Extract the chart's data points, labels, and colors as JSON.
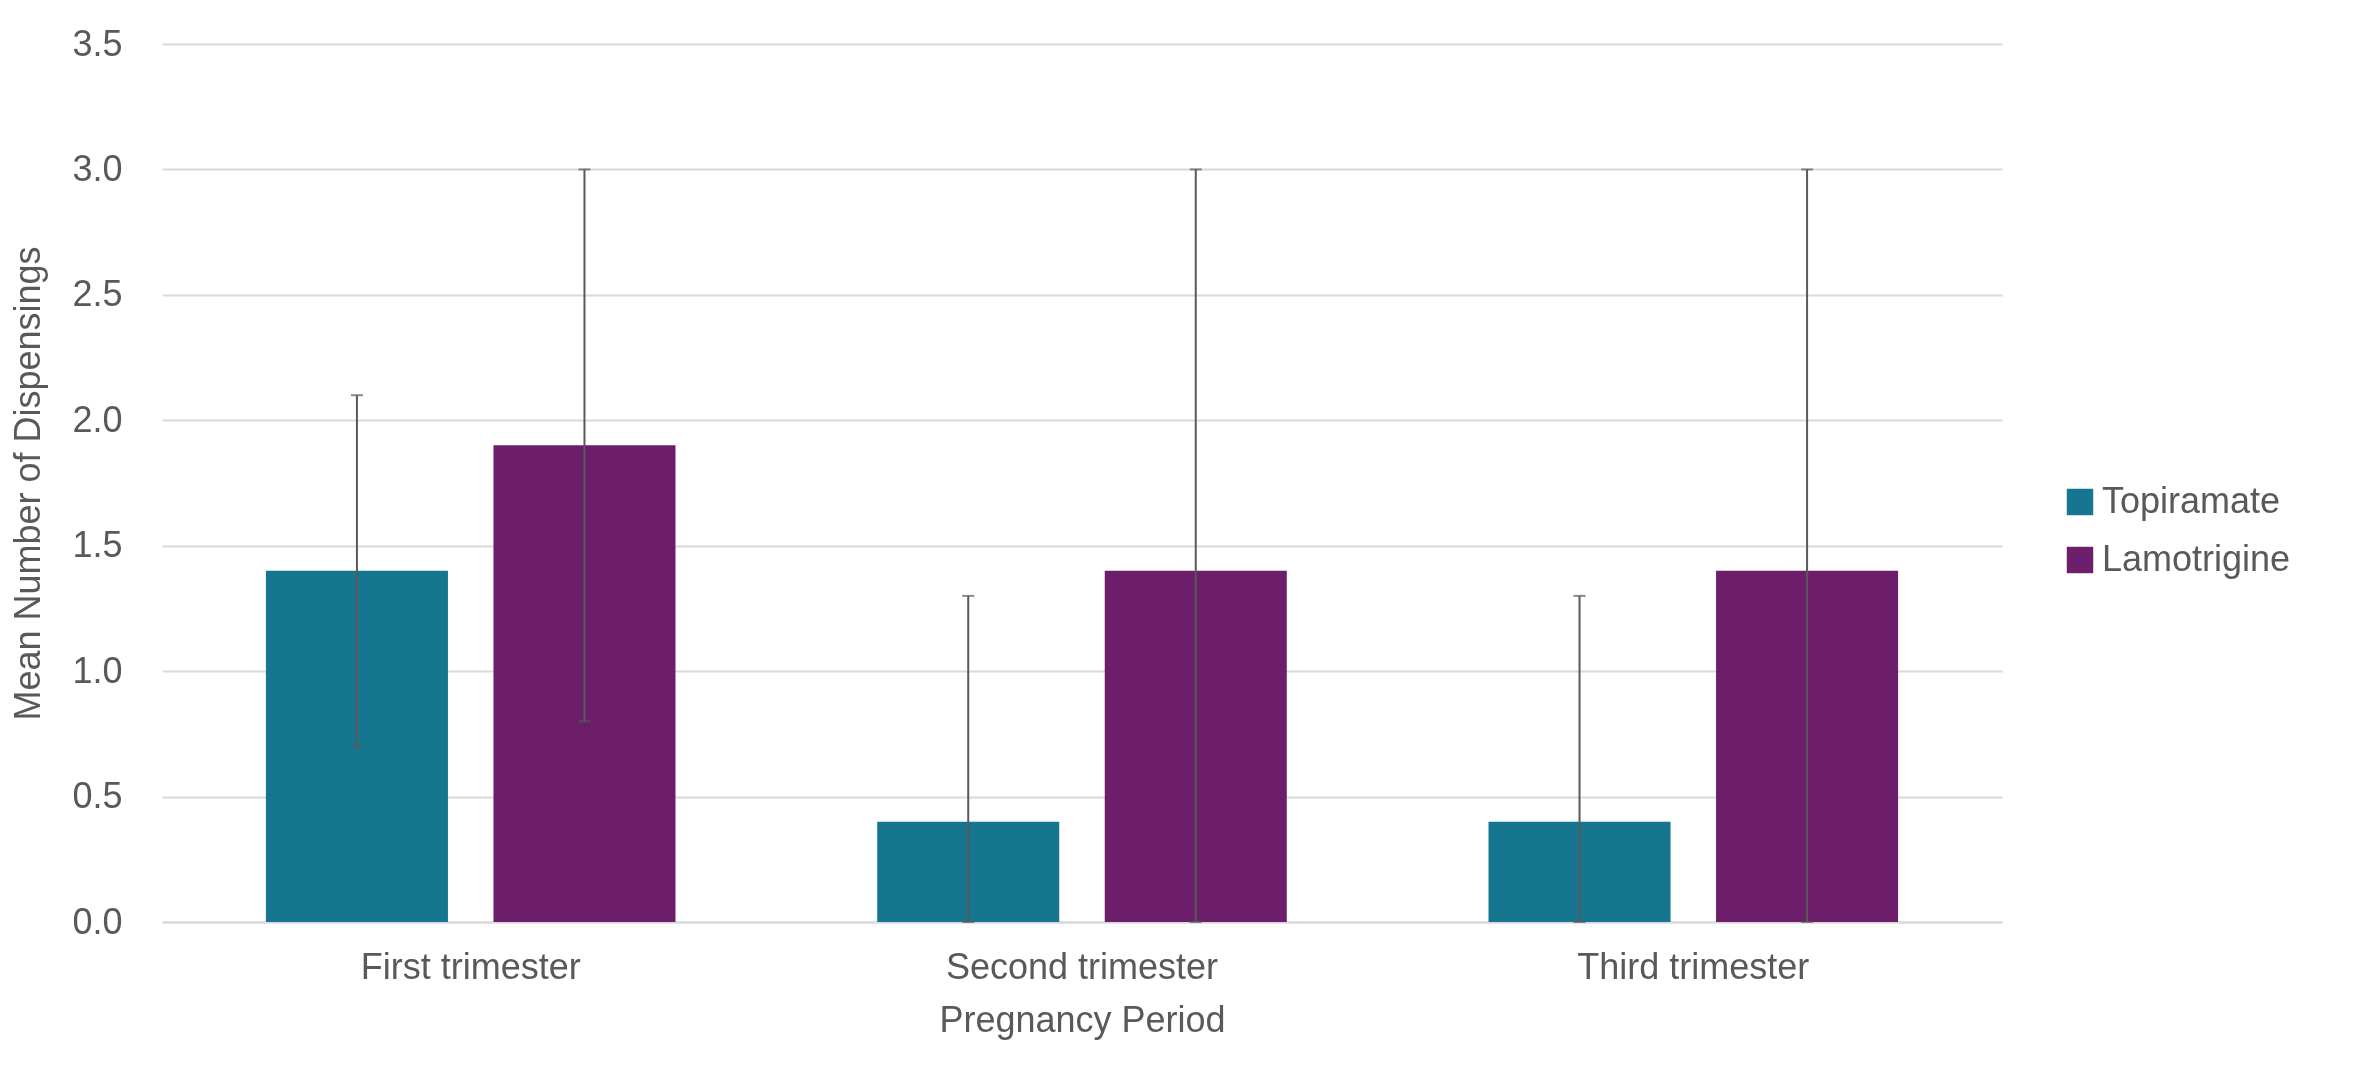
{
  "chart_data": {
    "type": "bar",
    "xlabel": "Pregnancy Period",
    "ylabel": "Mean Number of Dispensings",
    "categories": [
      "First trimester",
      "Second trimester",
      "Third trimester"
    ],
    "series": [
      {
        "name": "Topiramate",
        "color": "#17768f",
        "values": [
          1.4,
          0.4,
          0.4
        ],
        "errors": [
          [
            0.7,
            2.1
          ],
          [
            0,
            1.3
          ],
          [
            0,
            1.3
          ]
        ]
      },
      {
        "name": "Lamotrigine",
        "color": "#6d1e6a",
        "values": [
          1.9,
          1.4,
          1.4
        ],
        "errors": [
          [
            0.8,
            3.0
          ],
          [
            0,
            3.0
          ],
          [
            0,
            3.0
          ]
        ]
      }
    ],
    "ylim": [
      0,
      3.5
    ],
    "yticks": [
      {
        "value": 0,
        "label": "0.0"
      },
      {
        "value": 0.5,
        "label": "0.5"
      },
      {
        "value": 1,
        "label": "1.0"
      },
      {
        "value": 1.5,
        "label": "1.5"
      },
      {
        "value": 2,
        "label": "2.0"
      },
      {
        "value": 2.5,
        "label": "2.5"
      },
      {
        "value": 3,
        "label": "3.0"
      },
      {
        "value": 3.5,
        "label": "3.5"
      }
    ],
    "grid": "y",
    "legend": "right"
  }
}
